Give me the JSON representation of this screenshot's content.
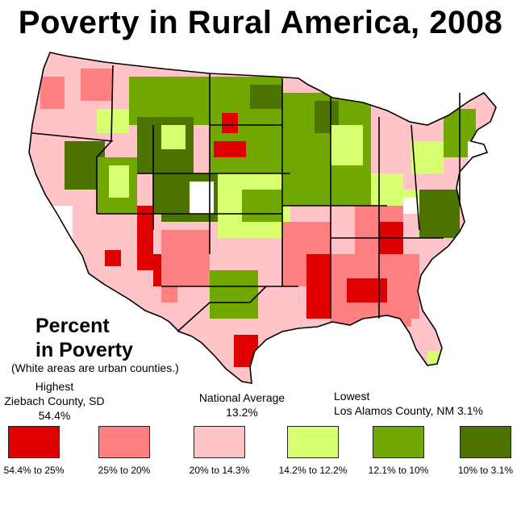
{
  "title": "Poverty in Rural America, 2008",
  "legend": {
    "heading_line1": "Percent",
    "heading_line2": "in Poverty",
    "note": "(White areas are urban counties.)",
    "highest": {
      "label": "Highest",
      "place": "Ziebach County, SD",
      "value": "54.4%"
    },
    "national": {
      "label": "National Average",
      "value": "13.2%"
    },
    "lowest": {
      "label": "Lowest",
      "place_value": "Los Alamos County, NM 3.1%"
    },
    "ranges": [
      {
        "label": "54.4% to 25%",
        "color": "#e00000"
      },
      {
        "label": "25% to 20%",
        "color": "#ff8080"
      },
      {
        "label": "20% to 14.3%",
        "color": "#ffc4c8"
      },
      {
        "label": "14.2% to 12.2%",
        "color": "#d8ff70"
      },
      {
        "label": "12.1% to 10%",
        "color": "#70a800"
      },
      {
        "label": "10% to 3.1%",
        "color": "#4c7200"
      }
    ]
  },
  "map_colors": {
    "urban": "#ffffff",
    "border": "#000000",
    "water": "#ffffff"
  }
}
